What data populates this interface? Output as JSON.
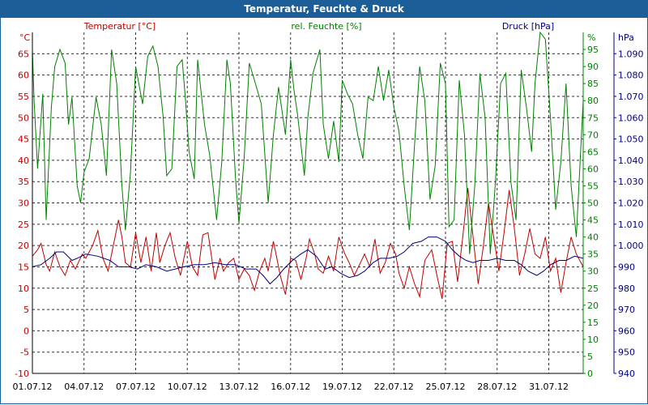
{
  "window": {
    "title": "Temperatur, Feuchte & Druck"
  },
  "chart_data": {
    "type": "line",
    "title": "Temperatur, Feuchte & Druck",
    "grid": true,
    "x": {
      "tick_labels": [
        "01.07.12",
        "04.07.12",
        "07.07.12",
        "10.07.12",
        "13.07.12",
        "16.07.12",
        "19.07.12",
        "22.07.12",
        "25.07.12",
        "28.07.12",
        "31.07.12"
      ],
      "range_days": [
        0,
        31
      ]
    },
    "axes": {
      "temperature": {
        "label": "Temperatur [°C]",
        "unit": "°C",
        "min": -10,
        "max": 70,
        "ticks": [
          -10,
          -5,
          0,
          5,
          10,
          15,
          20,
          25,
          30,
          35,
          40,
          45,
          50,
          55,
          60,
          65
        ],
        "color": "#c00000"
      },
      "humidity": {
        "label": "rel. Feuchte [%]",
        "unit": "%",
        "min": 0,
        "max": 100,
        "ticks": [
          0,
          5,
          10,
          15,
          20,
          25,
          30,
          35,
          40,
          45,
          50,
          55,
          60,
          65,
          70,
          75,
          80,
          85,
          90,
          95
        ],
        "color": "#008000"
      },
      "pressure": {
        "label": "Druck [hPa]",
        "unit": "hPa",
        "min": 940,
        "max": 1100,
        "ticks": [
          "940",
          "950",
          "960",
          "970",
          "980",
          "990",
          "1.000",
          "1.010",
          "1.020",
          "1.030",
          "1.040",
          "1.050",
          "1.060",
          "1.070",
          "1.080",
          "1.090"
        ],
        "color": "#000080"
      }
    },
    "series": [
      {
        "name": "Temperatur [°C]",
        "axis": "temperature",
        "color": "#c00000",
        "points": [
          [
            0,
            17.5
          ],
          [
            0.3,
            19
          ],
          [
            0.5,
            20.5
          ],
          [
            0.8,
            15.5
          ],
          [
            1.0,
            14
          ],
          [
            1.3,
            18.5
          ],
          [
            1.6,
            15
          ],
          [
            1.9,
            13
          ],
          [
            2.2,
            16.5
          ],
          [
            2.5,
            14.5
          ],
          [
            2.9,
            18
          ],
          [
            3.1,
            17
          ],
          [
            3.5,
            20
          ],
          [
            3.8,
            23.5
          ],
          [
            4.1,
            17
          ],
          [
            4.4,
            14
          ],
          [
            4.7,
            20
          ],
          [
            5.0,
            26
          ],
          [
            5.2,
            22
          ],
          [
            5.4,
            16
          ],
          [
            5.7,
            15
          ],
          [
            6.0,
            23
          ],
          [
            6.3,
            16
          ],
          [
            6.6,
            22
          ],
          [
            6.9,
            14
          ],
          [
            7.2,
            23
          ],
          [
            7.4,
            16
          ],
          [
            7.7,
            20
          ],
          [
            8.0,
            23
          ],
          [
            8.3,
            17
          ],
          [
            8.6,
            13
          ],
          [
            9.0,
            21
          ],
          [
            9.3,
            15
          ],
          [
            9.6,
            13
          ],
          [
            9.9,
            22.5
          ],
          [
            10.2,
            23
          ],
          [
            10.6,
            12
          ],
          [
            10.9,
            17
          ],
          [
            11.1,
            14
          ],
          [
            11.4,
            16
          ],
          [
            11.7,
            17
          ],
          [
            12.0,
            12
          ],
          [
            12.3,
            14.5
          ],
          [
            12.6,
            13
          ],
          [
            12.9,
            9.5
          ],
          [
            13.2,
            14
          ],
          [
            13.5,
            17
          ],
          [
            13.7,
            14
          ],
          [
            14.0,
            21
          ],
          [
            14.2,
            17
          ],
          [
            14.4,
            13
          ],
          [
            14.7,
            8.5
          ],
          [
            15.0,
            17
          ],
          [
            15.3,
            16.5
          ],
          [
            15.6,
            12
          ],
          [
            15.9,
            17
          ],
          [
            16.1,
            21.5
          ],
          [
            16.4,
            18
          ],
          [
            16.6,
            14.5
          ],
          [
            16.9,
            13.5
          ],
          [
            17.2,
            17.5
          ],
          [
            17.5,
            14
          ],
          [
            17.8,
            22
          ],
          [
            18.1,
            18.5
          ],
          [
            18.4,
            16
          ],
          [
            18.7,
            13
          ],
          [
            19.0,
            15.5
          ],
          [
            19.3,
            18
          ],
          [
            19.6,
            15
          ],
          [
            19.9,
            21.5
          ],
          [
            20.2,
            13.5
          ],
          [
            20.5,
            16
          ],
          [
            20.8,
            20.5
          ],
          [
            21.1,
            18
          ],
          [
            21.3,
            13.5
          ],
          [
            21.6,
            10
          ],
          [
            21.9,
            15
          ],
          [
            22.2,
            11
          ],
          [
            22.5,
            8
          ],
          [
            22.8,
            16.5
          ],
          [
            23.2,
            19
          ],
          [
            23.5,
            13
          ],
          [
            23.8,
            7.5
          ],
          [
            24.1,
            20.5
          ],
          [
            24.4,
            21
          ],
          [
            24.7,
            11.5
          ],
          [
            25.0,
            22
          ],
          [
            25.3,
            33.5
          ],
          [
            25.6,
            22
          ],
          [
            25.9,
            11
          ],
          [
            26.2,
            20
          ],
          [
            26.5,
            30
          ],
          [
            26.8,
            22
          ],
          [
            27.1,
            14
          ],
          [
            27.4,
            23
          ],
          [
            27.7,
            33
          ],
          [
            28.0,
            24
          ],
          [
            28.3,
            13
          ],
          [
            28.6,
            18
          ],
          [
            28.9,
            24
          ],
          [
            29.2,
            18
          ],
          [
            29.5,
            17
          ],
          [
            29.8,
            22
          ],
          [
            30.1,
            14
          ],
          [
            30.4,
            17
          ],
          [
            30.7,
            9
          ],
          [
            31.0,
            16
          ],
          [
            31.3,
            22
          ],
          [
            31.6,
            18
          ],
          [
            32.0,
            15
          ]
        ]
      },
      {
        "name": "rel. Feuchte [%]",
        "axis": "humidity",
        "color": "#008000",
        "points": [
          [
            0,
            95
          ],
          [
            0.1,
            80
          ],
          [
            0.3,
            60
          ],
          [
            0.6,
            82
          ],
          [
            0.8,
            45
          ],
          [
            1.1,
            78
          ],
          [
            1.3,
            90
          ],
          [
            1.6,
            95
          ],
          [
            1.9,
            91
          ],
          [
            2.1,
            73
          ],
          [
            2.3,
            81
          ],
          [
            2.6,
            55
          ],
          [
            2.8,
            50
          ],
          [
            3.0,
            59
          ],
          [
            3.3,
            63
          ],
          [
            3.7,
            81
          ],
          [
            4.0,
            73
          ],
          [
            4.3,
            58
          ],
          [
            4.6,
            95
          ],
          [
            4.9,
            85
          ],
          [
            5.2,
            55
          ],
          [
            5.4,
            42
          ],
          [
            5.7,
            59
          ],
          [
            6.0,
            90
          ],
          [
            6.4,
            79
          ],
          [
            6.7,
            93
          ],
          [
            7.0,
            96
          ],
          [
            7.3,
            90
          ],
          [
            7.6,
            75
          ],
          [
            7.8,
            58
          ],
          [
            8.1,
            60
          ],
          [
            8.4,
            90
          ],
          [
            8.7,
            92
          ],
          [
            8.9,
            80
          ],
          [
            9.1,
            65
          ],
          [
            9.4,
            57
          ],
          [
            9.6,
            92
          ],
          [
            10.0,
            73
          ],
          [
            10.3,
            64
          ],
          [
            10.7,
            45
          ],
          [
            11.0,
            62
          ],
          [
            11.3,
            92
          ],
          [
            11.5,
            85
          ],
          [
            11.8,
            57
          ],
          [
            12.0,
            44
          ],
          [
            12.3,
            63
          ],
          [
            12.6,
            91
          ],
          [
            12.9,
            86
          ],
          [
            13.3,
            79
          ],
          [
            13.7,
            50
          ],
          [
            14.0,
            70
          ],
          [
            14.3,
            84
          ],
          [
            14.7,
            70
          ],
          [
            15.0,
            92
          ],
          [
            15.2,
            83
          ],
          [
            15.4,
            76
          ],
          [
            15.8,
            58
          ],
          [
            16.0,
            75
          ],
          [
            16.3,
            88
          ],
          [
            16.7,
            95
          ],
          [
            16.9,
            73
          ],
          [
            17.2,
            63
          ],
          [
            17.5,
            74
          ],
          [
            17.8,
            62
          ],
          [
            18.0,
            86
          ],
          [
            18.3,
            82
          ],
          [
            18.6,
            79
          ],
          [
            18.9,
            70
          ],
          [
            19.2,
            63
          ],
          [
            19.5,
            81
          ],
          [
            19.8,
            80
          ],
          [
            20.1,
            90
          ],
          [
            20.4,
            80
          ],
          [
            20.7,
            89
          ],
          [
            21.0,
            78
          ],
          [
            21.3,
            71
          ],
          [
            21.6,
            55
          ],
          [
            21.9,
            42
          ],
          [
            22.2,
            67
          ],
          [
            22.5,
            90
          ],
          [
            22.8,
            80
          ],
          [
            23.1,
            51
          ],
          [
            23.4,
            61
          ],
          [
            23.7,
            91
          ],
          [
            24.0,
            85
          ],
          [
            24.2,
            43
          ],
          [
            24.5,
            45
          ],
          [
            24.8,
            86
          ],
          [
            25.1,
            70
          ],
          [
            25.4,
            35
          ],
          [
            25.7,
            55
          ],
          [
            26.0,
            88
          ],
          [
            26.3,
            75
          ],
          [
            26.6,
            35
          ],
          [
            26.9,
            56
          ],
          [
            27.2,
            85
          ],
          [
            27.5,
            88
          ],
          [
            27.8,
            56
          ],
          [
            28.1,
            45
          ],
          [
            28.4,
            89
          ],
          [
            28.7,
            78
          ],
          [
            29.0,
            65
          ],
          [
            29.2,
            85
          ],
          [
            29.5,
            100
          ],
          [
            29.8,
            98
          ],
          [
            30.1,
            75
          ],
          [
            30.4,
            48
          ],
          [
            30.7,
            62
          ],
          [
            31.0,
            85
          ],
          [
            31.3,
            55
          ],
          [
            31.6,
            40
          ],
          [
            32.0,
            80
          ]
        ]
      },
      {
        "name": "Druck [hPa]",
        "axis": "pressure",
        "color": "#000080",
        "points": [
          [
            0,
            990
          ],
          [
            0.5,
            991
          ],
          [
            1.0,
            994
          ],
          [
            1.4,
            997
          ],
          [
            1.8,
            997
          ],
          [
            2.3,
            993
          ],
          [
            2.6,
            994
          ],
          [
            3.1,
            996
          ],
          [
            3.8,
            995
          ],
          [
            4.5,
            993
          ],
          [
            5.0,
            990
          ],
          [
            5.6,
            990
          ],
          [
            6.1,
            989
          ],
          [
            6.6,
            991
          ],
          [
            7.2,
            990
          ],
          [
            7.8,
            988
          ],
          [
            8.3,
            989
          ],
          [
            8.8,
            990
          ],
          [
            9.4,
            991
          ],
          [
            10.0,
            991
          ],
          [
            10.6,
            992
          ],
          [
            11.2,
            991
          ],
          [
            11.8,
            991
          ],
          [
            12.4,
            989
          ],
          [
            13.0,
            989
          ],
          [
            13.4,
            986
          ],
          [
            13.8,
            982
          ],
          [
            14.2,
            985
          ],
          [
            14.6,
            989
          ],
          [
            15.1,
            993
          ],
          [
            15.6,
            996
          ],
          [
            16.0,
            998
          ],
          [
            16.5,
            995
          ],
          [
            17.0,
            989
          ],
          [
            17.4,
            990
          ],
          [
            17.9,
            987
          ],
          [
            18.4,
            985
          ],
          [
            18.9,
            986
          ],
          [
            19.3,
            988
          ],
          [
            19.8,
            992
          ],
          [
            20.2,
            994
          ],
          [
            20.7,
            994
          ],
          [
            21.2,
            995
          ],
          [
            21.6,
            997
          ],
          [
            22.1,
            1001
          ],
          [
            22.6,
            1002
          ],
          [
            23.0,
            1004
          ],
          [
            23.5,
            1004
          ],
          [
            24.0,
            1002
          ],
          [
            24.4,
            998
          ],
          [
            24.8,
            995
          ],
          [
            25.2,
            993
          ],
          [
            25.6,
            992
          ],
          [
            26.0,
            993
          ],
          [
            26.5,
            993
          ],
          [
            27.0,
            994
          ],
          [
            27.5,
            993
          ],
          [
            28.0,
            993
          ],
          [
            28.4,
            991
          ],
          [
            28.8,
            988
          ],
          [
            29.3,
            986
          ],
          [
            29.7,
            988
          ],
          [
            30.1,
            991
          ],
          [
            30.6,
            993
          ],
          [
            31.0,
            993
          ],
          [
            31.5,
            995
          ],
          [
            32.0,
            994
          ]
        ]
      }
    ]
  }
}
